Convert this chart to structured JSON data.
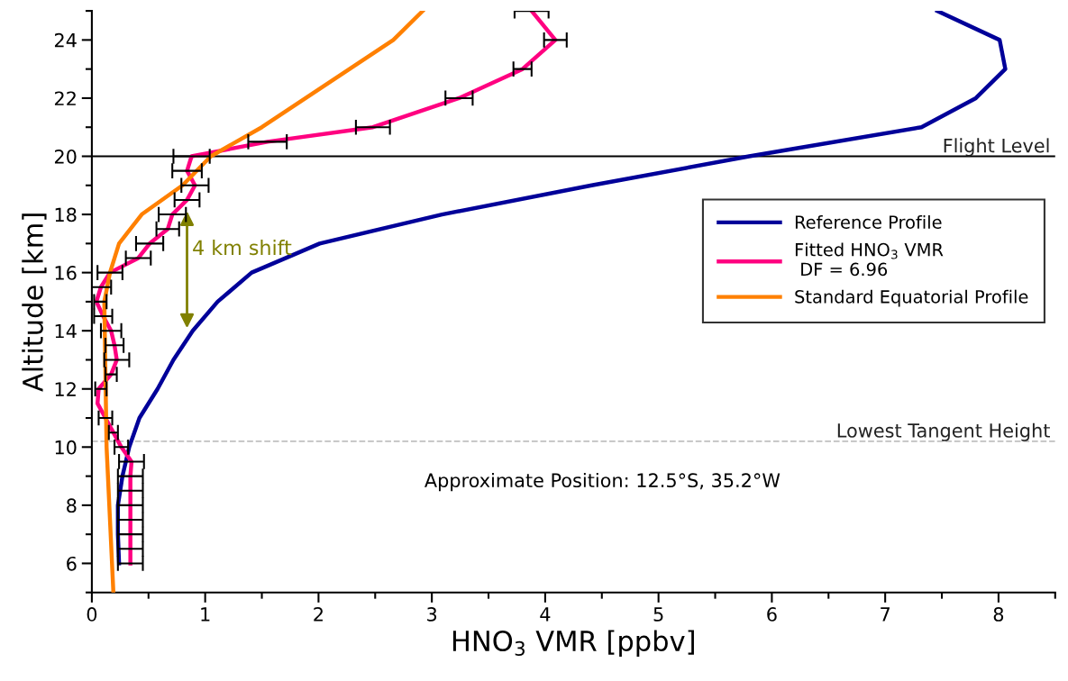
{
  "chart_data": {
    "type": "line",
    "xlabel": "HNO$_{3}$ VMR [ppbv]",
    "ylabel": "Altitude [km]",
    "xlim": [
      0,
      8.5
    ],
    "xticks": [
      0,
      1,
      2,
      3,
      4,
      5,
      6,
      7,
      8
    ],
    "ylim": [
      5,
      25
    ],
    "yticks": [
      6,
      8,
      10,
      12,
      14,
      16,
      18,
      20,
      22,
      24
    ],
    "grid": false,
    "legend": "right",
    "marker": "none",
    "line_style": "solid",
    "series": [
      {
        "name": "Reference Profile",
        "color": "#000099",
        "x": [
          0.24,
          0.23,
          0.23,
          0.27,
          0.3,
          0.33,
          0.42,
          0.58,
          0.72,
          0.89,
          1.11,
          1.41,
          2.01,
          3.09,
          4.41,
          5.8,
          7.32,
          7.8,
          8.06,
          8.01,
          7.46
        ],
        "values": [
          6,
          7,
          8,
          9,
          9.5,
          10,
          11,
          12,
          13,
          14,
          15,
          16,
          17,
          18,
          19,
          20,
          21,
          22,
          23,
          24,
          25
        ]
      },
      {
        "name": "Fitted HNO$_{3}$ VMR\n DF = 6.96",
        "color": "#ff0080",
        "x": [
          0.34,
          0.34,
          0.34,
          0.34,
          0.34,
          0.34,
          0.34,
          0.35,
          0.26,
          0.19,
          0.12,
          0.05,
          0.06,
          0.17,
          0.22,
          0.2,
          0.17,
          0.1,
          0.04,
          0.08,
          0.16,
          0.41,
          0.51,
          0.67,
          0.71,
          0.84,
          0.91,
          0.84,
          0.88,
          1.55,
          2.48,
          3.24,
          3.8,
          4.09,
          3.88
        ],
        "values": [
          6,
          6.5,
          7,
          7.5,
          8,
          8.5,
          9,
          9.5,
          10,
          10.5,
          11,
          11.5,
          12,
          12.5,
          13,
          13.5,
          14,
          14.5,
          15,
          15.5,
          16,
          16.5,
          17,
          17.5,
          18,
          18.5,
          19,
          19.5,
          20,
          20.5,
          21,
          22,
          23,
          24,
          25
        ],
        "xerrors": [
          0.11,
          0.11,
          0.11,
          0.11,
          0.11,
          0.11,
          0.11,
          0.11,
          0.06,
          0.04,
          0.06,
          null,
          [
            0.03,
            0.13
          ],
          0.05,
          0.11,
          0.08,
          0.09,
          0.08,
          [
            0.02,
            0.13
          ],
          0.09,
          0.11,
          0.11,
          0.12,
          0.1,
          0.12,
          0.11,
          0.12,
          0.13,
          0.16,
          0.17,
          0.15,
          0.12,
          0.08,
          0.1,
          0.15
        ]
      },
      {
        "name": "Standard Equatorial Profile",
        "color": "#ff8000",
        "x": [
          0.19,
          0.13,
          0.11,
          0.16,
          0.24,
          0.44,
          0.8,
          1.05,
          1.5,
          2.66,
          2.92
        ],
        "values": [
          5,
          10,
          15,
          16,
          17,
          18,
          19,
          20,
          21,
          24,
          25
        ]
      }
    ],
    "ref_lines": [
      {
        "axis": "y",
        "value": 20,
        "label": "Flight Level",
        "color": "#000000",
        "line_style": "solid"
      },
      {
        "axis": "y",
        "value": 10.2,
        "label": "Lowest Tangent Height",
        "color": "#c0c0c0",
        "line_style": "dashed"
      }
    ],
    "annotations": [
      "Approximate Position: 12.5°S, 35.2°W",
      "4 km shift"
    ]
  }
}
